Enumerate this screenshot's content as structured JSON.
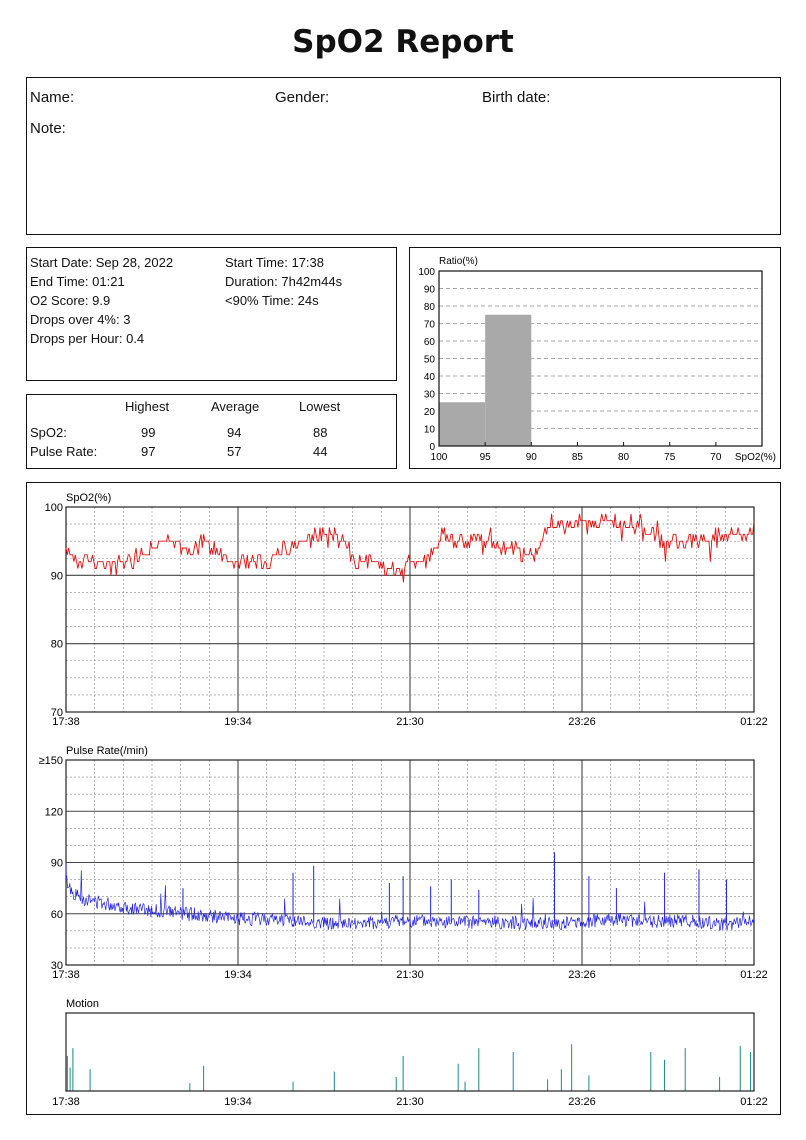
{
  "report": {
    "title": "SpO2 Report"
  },
  "patient": {
    "name_label": "Name:",
    "gender_label": "Gender:",
    "birth_label": "Birth date:",
    "note_label": "Note:"
  },
  "summary": {
    "start_date": "Start Date: Sep 28, 2022",
    "start_time": "Start Time: 17:38",
    "end_time": "End Time: 01:21",
    "duration": "Duration: 7h42m44s",
    "o2_score": "O2 Score: 9.9",
    "below90": "<90% Time: 24s",
    "drops_over": "Drops over 4%: 3",
    "drops_per_hour": "Drops per Hour: 0.4"
  },
  "stats": {
    "headers": [
      "Highest",
      "Average",
      "Lowest"
    ],
    "rows": [
      {
        "label": "SpO2:",
        "values": [
          "99",
          "94",
          "88"
        ]
      },
      {
        "label": "Pulse Rate:",
        "values": [
          "97",
          "57",
          "44"
        ]
      }
    ]
  },
  "chart_data": [
    {
      "type": "bar",
      "ylabel": "Ratio(%)",
      "xlabel": "SpO2(%)",
      "ylim": [
        0,
        100
      ],
      "yticks": [
        "0",
        "10",
        "20",
        "30",
        "40",
        "50",
        "60",
        "70",
        "80",
        "90",
        "100"
      ],
      "xticks": [
        "100",
        "95",
        "90",
        "85",
        "80",
        "75",
        "70"
      ],
      "bins": [
        "100-95",
        "95-90",
        "90-85",
        "85-80",
        "80-75",
        "75-70"
      ],
      "values": [
        25,
        75,
        0,
        0,
        0,
        0
      ],
      "grid": true,
      "bar_color": "#a9a9a9"
    },
    {
      "type": "line",
      "ylabel": "SpO2(%)",
      "ylim": [
        70,
        100
      ],
      "yticks": [
        "70",
        "80",
        "90",
        "100"
      ],
      "xticks": [
        "17:38",
        "19:34",
        "21:30",
        "23:26",
        "01:22"
      ],
      "color": "#e01010",
      "grid": true,
      "series": [
        {
          "x": [
            0,
            0.02,
            0.04,
            0.08,
            0.1,
            0.12,
            0.14,
            0.16,
            0.18,
            0.2,
            0.22,
            0.25,
            0.28,
            0.3,
            0.32,
            0.35,
            0.38,
            0.4,
            0.42,
            0.44,
            0.45,
            0.46,
            0.48,
            0.5,
            0.52,
            0.54,
            0.55,
            0.56,
            0.58,
            0.6,
            0.62,
            0.64,
            0.66,
            0.68,
            0.7,
            0.72,
            0.74,
            0.75,
            0.76,
            0.78,
            0.8,
            0.82,
            0.85,
            0.88,
            0.9,
            0.92,
            0.94,
            0.96,
            0.98,
            1.0
          ],
          "values": [
            94,
            92,
            91.5,
            91.5,
            92.5,
            93.5,
            95,
            94.5,
            94,
            95.5,
            93,
            92,
            91.5,
            92.5,
            94,
            95,
            96.5,
            95,
            92.5,
            92,
            91.5,
            91.5,
            90.5,
            92,
            92.5,
            94,
            96.5,
            94.5,
            94.5,
            94.5,
            94.5,
            94,
            93.5,
            92.5,
            97,
            97,
            97.5,
            97.5,
            97.5,
            97.5,
            97.5,
            97,
            96,
            94.5,
            94.5,
            95,
            95.5,
            96.5,
            96,
            96.5
          ]
        }
      ]
    },
    {
      "type": "line",
      "ylabel": "Pulse Rate(/min)",
      "ylim": [
        30,
        150
      ],
      "yticks": [
        "30",
        "60",
        "90",
        "120",
        "≥150"
      ],
      "xticks": [
        "17:38",
        "19:34",
        "21:30",
        "23:26",
        "01:22"
      ],
      "color": "#2424e0",
      "grid": true,
      "series": [
        {
          "x": [
            0,
            0.01,
            0.03,
            0.06,
            0.1,
            0.15,
            0.2,
            0.25,
            0.3,
            0.35,
            0.4,
            0.45,
            0.5,
            0.55,
            0.6,
            0.65,
            0.7,
            0.75,
            0.8,
            0.85,
            0.9,
            0.95,
            1.0
          ],
          "values": [
            80,
            72,
            68,
            66,
            63,
            61,
            59,
            57,
            57,
            55,
            54,
            55,
            56,
            55,
            55,
            55,
            54,
            55,
            57,
            55,
            56,
            54,
            55
          ]
        }
      ],
      "spikes": [
        {
          "x": 0.0,
          "y": 90
        },
        {
          "x": 0.17,
          "y": 75
        },
        {
          "x": 0.33,
          "y": 84
        },
        {
          "x": 0.36,
          "y": 88
        },
        {
          "x": 0.47,
          "y": 78
        },
        {
          "x": 0.49,
          "y": 82
        },
        {
          "x": 0.53,
          "y": 76
        },
        {
          "x": 0.56,
          "y": 80
        },
        {
          "x": 0.6,
          "y": 74
        },
        {
          "x": 0.71,
          "y": 96
        },
        {
          "x": 0.76,
          "y": 82
        },
        {
          "x": 0.8,
          "y": 75
        },
        {
          "x": 0.87,
          "y": 84
        },
        {
          "x": 0.92,
          "y": 86
        },
        {
          "x": 0.96,
          "y": 80
        }
      ]
    },
    {
      "type": "bar",
      "ylabel": "Motion",
      "xticks": [
        "17:38",
        "19:34",
        "21:30",
        "23:26",
        "01:22"
      ],
      "color": "#1a8a8a",
      "spikes": [
        {
          "x": 0.002,
          "y": 0.45
        },
        {
          "x": 0.006,
          "y": 0.3
        },
        {
          "x": 0.01,
          "y": 0.55
        },
        {
          "x": 0.035,
          "y": 0.28
        },
        {
          "x": 0.18,
          "y": 0.1
        },
        {
          "x": 0.2,
          "y": 0.32
        },
        {
          "x": 0.33,
          "y": 0.12
        },
        {
          "x": 0.39,
          "y": 0.25
        },
        {
          "x": 0.48,
          "y": 0.18
        },
        {
          "x": 0.49,
          "y": 0.45
        },
        {
          "x": 0.57,
          "y": 0.35
        },
        {
          "x": 0.58,
          "y": 0.12
        },
        {
          "x": 0.6,
          "y": 0.55
        },
        {
          "x": 0.65,
          "y": 0.5
        },
        {
          "x": 0.7,
          "y": 0.15
        },
        {
          "x": 0.72,
          "y": 0.28
        },
        {
          "x": 0.735,
          "y": 0.6
        },
        {
          "x": 0.76,
          "y": 0.2
        },
        {
          "x": 0.85,
          "y": 0.5
        },
        {
          "x": 0.87,
          "y": 0.4
        },
        {
          "x": 0.9,
          "y": 0.55
        },
        {
          "x": 0.95,
          "y": 0.18
        },
        {
          "x": 0.98,
          "y": 0.58
        },
        {
          "x": 0.995,
          "y": 0.5
        }
      ]
    }
  ]
}
